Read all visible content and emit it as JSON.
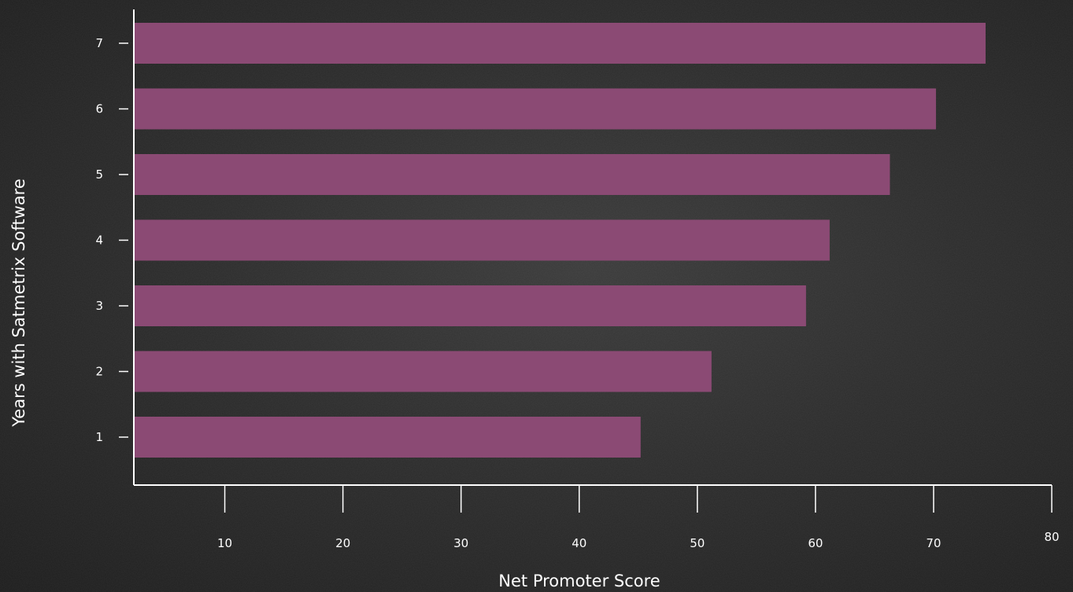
{
  "chart_data": {
    "type": "bar",
    "orientation": "horizontal",
    "categories": [
      "1",
      "2",
      "3",
      "4",
      "5",
      "6",
      "7"
    ],
    "values": [
      45.2,
      51.2,
      59.2,
      61.2,
      66.3,
      70.2,
      74.4
    ],
    "xlabel": "Net Promoter Score",
    "ylabel": "Years with Satmetrix Software",
    "xlim": [
      2.3,
      80
    ],
    "xticks": [
      10,
      20,
      30,
      40,
      50,
      60,
      70,
      80
    ],
    "bar_color": "#8b4a74",
    "axis_color": "#ffffff",
    "grid": false,
    "legend": "none"
  }
}
